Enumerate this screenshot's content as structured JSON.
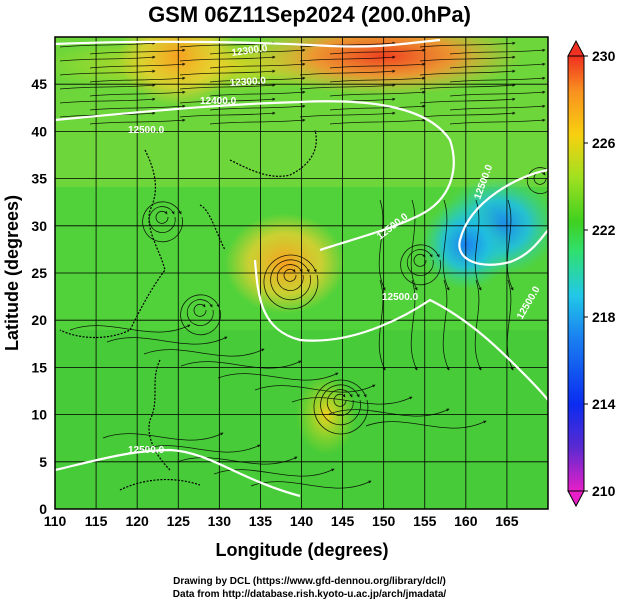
{
  "chart_data": {
    "type": "heatmap",
    "title": "GSM 06Z11Sep2024 (200.0hPa)",
    "xlabel": "Longitude (degrees)",
    "ylabel": "Latitude  (degrees)",
    "xlim": [
      110,
      170
    ],
    "ylim": [
      0,
      50
    ],
    "x_ticks": [
      "110",
      "115",
      "120",
      "125",
      "130",
      "135",
      "140",
      "145",
      "150",
      "155",
      "160",
      "165"
    ],
    "y_ticks": [
      "0",
      "5",
      "10",
      "15",
      "20",
      "25",
      "30",
      "35",
      "40",
      "45"
    ],
    "grid": true,
    "colorbar": {
      "min": 210,
      "max": 230,
      "ticks": [
        "210",
        "214",
        "218",
        "222",
        "226",
        "230"
      ],
      "colors": [
        "#e81fc8",
        "#5a2ad0",
        "#0a2cf0",
        "#1a7ff0",
        "#22c8e8",
        "#30e070",
        "#40d020",
        "#a0e020",
        "#f8d010",
        "#f89020",
        "#f03020"
      ]
    },
    "field_patches": [
      {
        "lon": 125,
        "lat": 48,
        "value": 226
      },
      {
        "lon": 150,
        "lat": 48,
        "value": 229
      },
      {
        "lon": 138,
        "lat": 26,
        "value": 226
      },
      {
        "lon": 143,
        "lat": 10,
        "value": 225
      },
      {
        "lon": 164,
        "lat": 30,
        "value": 219
      },
      {
        "lon": 160,
        "lat": 28,
        "value": 220
      }
    ],
    "contour_labels": [
      "12300.0",
      "12300.0",
      "12400.0",
      "12500.0",
      "12500.0",
      "12500.0",
      "12500.0",
      "12500.0",
      "12500.0"
    ]
  },
  "credits": {
    "line1": "Drawing by DCL (https://www.gfd-dennou.org/library/dcl/)",
    "line2": "Data from http://database.rish.kyoto-u.ac.jp/arch/jmadata/"
  }
}
